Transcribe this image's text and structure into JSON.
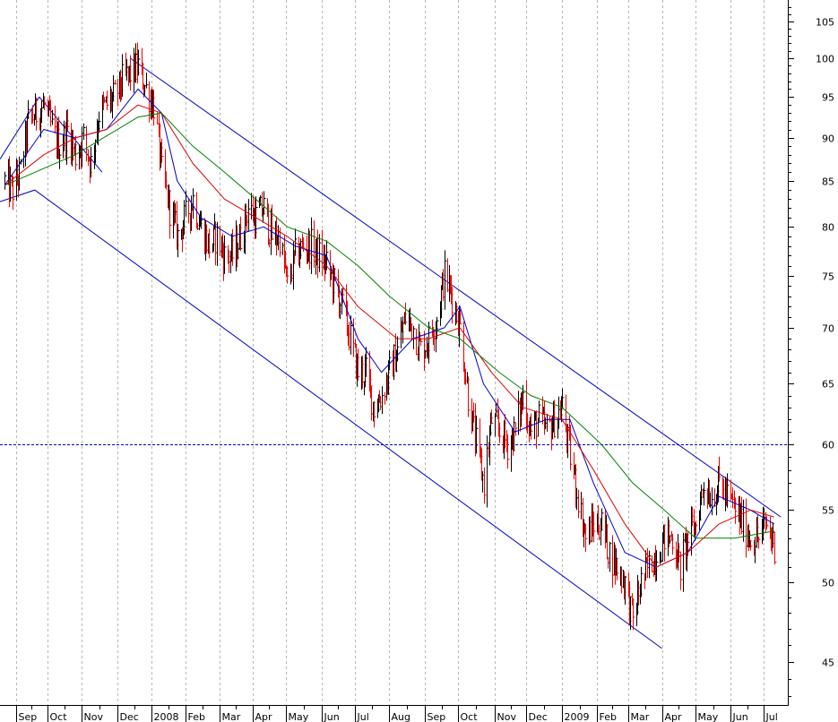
{
  "chart_data": {
    "type": "candlestick",
    "title": "",
    "xlabel": "",
    "ylabel": "",
    "y_scale": "log",
    "ylim": [
      42.5,
      108
    ],
    "y_ticks": [
      45,
      50,
      55,
      60,
      65,
      70,
      75,
      80,
      85,
      90,
      95,
      100,
      105
    ],
    "x_ticks": [
      {
        "label": "Sep",
        "date": "2007-09-03"
      },
      {
        "label": "Oct",
        "date": "2007-10-01"
      },
      {
        "label": "Nov",
        "date": "2007-11-01"
      },
      {
        "label": "Dec",
        "date": "2007-12-03"
      },
      {
        "label": "2008",
        "date": "2008-01-02"
      },
      {
        "label": "Feb",
        "date": "2008-02-01"
      },
      {
        "label": "Mar",
        "date": "2008-03-03"
      },
      {
        "label": "Apr",
        "date": "2008-04-01"
      },
      {
        "label": "May",
        "date": "2008-05-01"
      },
      {
        "label": "Jun",
        "date": "2008-06-02"
      },
      {
        "label": "Jul",
        "date": "2008-07-01"
      },
      {
        "label": "Aug",
        "date": "2008-08-01"
      },
      {
        "label": "Sep",
        "date": "2008-09-02"
      },
      {
        "label": "Oct",
        "date": "2008-10-01"
      },
      {
        "label": "Nov",
        "date": "2008-11-03"
      },
      {
        "label": "Dec",
        "date": "2008-12-01"
      },
      {
        "label": "2009",
        "date": "2009-01-02"
      },
      {
        "label": "Feb",
        "date": "2009-02-02"
      },
      {
        "label": "Mar",
        "date": "2009-03-02"
      },
      {
        "label": "Apr",
        "date": "2009-04-01"
      },
      {
        "label": "May",
        "date": "2009-05-01"
      },
      {
        "label": "Jun",
        "date": "2009-06-01"
      },
      {
        "label": "Jul",
        "date": "2009-07-01"
      }
    ],
    "grid": "vertical dotted",
    "close_series": [
      [
        "2007-08-24",
        85
      ],
      [
        "2007-08-31",
        84
      ],
      [
        "2007-09-07",
        86
      ],
      [
        "2007-09-14",
        92
      ],
      [
        "2007-09-21",
        93
      ],
      [
        "2007-09-28",
        94
      ],
      [
        "2007-10-05",
        91
      ],
      [
        "2007-10-12",
        89
      ],
      [
        "2007-10-19",
        91
      ],
      [
        "2007-10-26",
        88
      ],
      [
        "2007-11-02",
        90
      ],
      [
        "2007-11-09",
        87
      ],
      [
        "2007-11-16",
        93
      ],
      [
        "2007-11-23",
        94
      ],
      [
        "2007-11-30",
        95
      ],
      [
        "2007-12-07",
        97
      ],
      [
        "2007-12-14",
        98
      ],
      [
        "2007-12-21",
        99
      ],
      [
        "2007-12-28",
        96
      ],
      [
        "2008-01-04",
        94
      ],
      [
        "2008-01-11",
        86
      ],
      [
        "2008-01-18",
        82
      ],
      [
        "2008-01-25",
        79
      ],
      [
        "2008-02-01",
        81
      ],
      [
        "2008-02-08",
        83
      ],
      [
        "2008-02-15",
        80
      ],
      [
        "2008-02-22",
        78
      ],
      [
        "2008-02-29",
        79
      ],
      [
        "2008-03-07",
        77
      ],
      [
        "2008-03-14",
        77
      ],
      [
        "2008-03-21",
        79
      ],
      [
        "2008-03-28",
        82
      ],
      [
        "2008-04-04",
        81
      ],
      [
        "2008-04-11",
        82
      ],
      [
        "2008-04-18",
        79
      ],
      [
        "2008-04-25",
        79
      ],
      [
        "2008-05-02",
        74
      ],
      [
        "2008-05-09",
        77
      ],
      [
        "2008-05-16",
        78
      ],
      [
        "2008-05-23",
        78
      ],
      [
        "2008-05-30",
        77
      ],
      [
        "2008-06-06",
        76
      ],
      [
        "2008-06-13",
        74
      ],
      [
        "2008-06-20",
        72
      ],
      [
        "2008-06-27",
        69
      ],
      [
        "2008-07-04",
        66
      ],
      [
        "2008-07-11",
        66
      ],
      [
        "2008-07-18",
        63
      ],
      [
        "2008-07-25",
        64
      ],
      [
        "2008-08-01",
        66
      ],
      [
        "2008-08-08",
        68
      ],
      [
        "2008-08-15",
        71
      ],
      [
        "2008-08-22",
        70
      ],
      [
        "2008-08-29",
        68
      ],
      [
        "2008-09-05",
        69
      ],
      [
        "2008-09-12",
        71
      ],
      [
        "2008-09-19",
        75
      ],
      [
        "2008-09-26",
        73
      ],
      [
        "2008-10-03",
        70
      ],
      [
        "2008-10-10",
        64
      ],
      [
        "2008-10-17",
        60
      ],
      [
        "2008-10-24",
        57
      ],
      [
        "2008-10-31",
        62
      ],
      [
        "2008-11-07",
        61
      ],
      [
        "2008-11-14",
        60
      ],
      [
        "2008-11-21",
        61
      ],
      [
        "2008-11-28",
        64
      ],
      [
        "2008-12-05",
        61
      ],
      [
        "2008-12-12",
        62
      ],
      [
        "2008-12-19",
        61
      ],
      [
        "2008-12-26",
        62
      ],
      [
        "2009-01-02",
        63
      ],
      [
        "2009-01-09",
        59
      ],
      [
        "2009-01-16",
        56
      ],
      [
        "2009-01-23",
        53
      ],
      [
        "2009-01-30",
        54
      ],
      [
        "2009-02-06",
        54
      ],
      [
        "2009-02-13",
        52
      ],
      [
        "2009-02-20",
        51
      ],
      [
        "2009-02-27",
        50
      ],
      [
        "2009-03-06",
        47.5
      ],
      [
        "2009-03-13",
        50
      ],
      [
        "2009-03-20",
        51
      ],
      [
        "2009-03-27",
        52
      ],
      [
        "2009-04-03",
        53
      ],
      [
        "2009-04-10",
        53
      ],
      [
        "2009-04-17",
        51
      ],
      [
        "2009-04-24",
        53
      ],
      [
        "2009-05-01",
        54
      ],
      [
        "2009-05-08",
        57
      ],
      [
        "2009-05-15",
        56
      ],
      [
        "2009-05-22",
        57
      ],
      [
        "2009-05-29",
        56
      ],
      [
        "2009-06-05",
        55
      ],
      [
        "2009-06-12",
        54
      ],
      [
        "2009-06-19",
        53
      ],
      [
        "2009-06-26",
        53
      ],
      [
        "2009-07-03",
        54
      ],
      [
        "2009-07-10",
        52.5
      ]
    ],
    "moving_averages": [
      {
        "color": "#0000cc",
        "values": [
          [
            "2007-08-24",
            84.5
          ],
          [
            "2007-09-28",
            91
          ],
          [
            "2007-10-26",
            90
          ],
          [
            "2007-11-23",
            91
          ],
          [
            "2007-12-21",
            96
          ],
          [
            "2008-01-11",
            93
          ],
          [
            "2008-01-25",
            85
          ],
          [
            "2008-02-15",
            81
          ],
          [
            "2008-03-14",
            79
          ],
          [
            "2008-04-11",
            80
          ],
          [
            "2008-05-09",
            78
          ],
          [
            "2008-06-06",
            77
          ],
          [
            "2008-07-04",
            69
          ],
          [
            "2008-07-25",
            66
          ],
          [
            "2008-08-22",
            69
          ],
          [
            "2008-09-19",
            70
          ],
          [
            "2008-10-03",
            72
          ],
          [
            "2008-10-24",
            65
          ],
          [
            "2008-11-21",
            61
          ],
          [
            "2008-12-19",
            62
          ],
          [
            "2009-01-09",
            62
          ],
          [
            "2009-01-30",
            57
          ],
          [
            "2009-02-27",
            52
          ],
          [
            "2009-03-27",
            51
          ],
          [
            "2009-04-24",
            52
          ],
          [
            "2009-05-22",
            56
          ],
          [
            "2009-06-19",
            55
          ],
          [
            "2009-07-10",
            54
          ]
        ]
      },
      {
        "color": "#dd0000",
        "values": [
          [
            "2007-08-24",
            84.5
          ],
          [
            "2007-09-28",
            88
          ],
          [
            "2007-10-26",
            90
          ],
          [
            "2007-11-23",
            91
          ],
          [
            "2007-12-21",
            94
          ],
          [
            "2008-01-11",
            93
          ],
          [
            "2008-02-08",
            87
          ],
          [
            "2008-03-07",
            83
          ],
          [
            "2008-04-04",
            81
          ],
          [
            "2008-05-02",
            79
          ],
          [
            "2008-06-06",
            76
          ],
          [
            "2008-07-04",
            72
          ],
          [
            "2008-08-08",
            69
          ],
          [
            "2008-09-05",
            69
          ],
          [
            "2008-10-03",
            70
          ],
          [
            "2008-10-31",
            66
          ],
          [
            "2008-11-28",
            63
          ],
          [
            "2009-01-02",
            62
          ],
          [
            "2009-01-30",
            58
          ],
          [
            "2009-02-27",
            54
          ],
          [
            "2009-03-27",
            51
          ],
          [
            "2009-04-24",
            52
          ],
          [
            "2009-05-22",
            54
          ],
          [
            "2009-06-19",
            55
          ],
          [
            "2009-07-10",
            54.5
          ]
        ]
      },
      {
        "color": "#008000",
        "values": [
          [
            "2007-08-24",
            84.5
          ],
          [
            "2007-10-26",
            88
          ],
          [
            "2007-12-21",
            92.5
          ],
          [
            "2008-01-11",
            93
          ],
          [
            "2008-02-08",
            89
          ],
          [
            "2008-03-07",
            86
          ],
          [
            "2008-04-04",
            83
          ],
          [
            "2008-05-02",
            80
          ],
          [
            "2008-06-06",
            78.5
          ],
          [
            "2008-07-04",
            76
          ],
          [
            "2008-08-01",
            73
          ],
          [
            "2008-09-05",
            70
          ],
          [
            "2008-10-03",
            69
          ],
          [
            "2008-11-07",
            66
          ],
          [
            "2008-12-05",
            64
          ],
          [
            "2009-01-02",
            63
          ],
          [
            "2009-02-06",
            60
          ],
          [
            "2009-03-06",
            57
          ],
          [
            "2009-04-03",
            55
          ],
          [
            "2009-05-01",
            53
          ],
          [
            "2009-06-05",
            53
          ],
          [
            "2009-07-10",
            53.5
          ]
        ]
      }
    ],
    "trendlines": [
      {
        "color": "#0000cc",
        "from": [
          "2007-12-14",
          100
        ],
        "to": [
          "2009-07-16",
          54.5
        ]
      },
      {
        "color": "#0000cc",
        "from": [
          "2007-08-20",
          82.7
        ],
        "to": [
          "2007-09-20",
          84
        ],
        "then": [
          "2009-04-01",
          45.8
        ]
      },
      {
        "color": "#0000cc",
        "from": [
          "2007-09-24",
          95
        ],
        "to": [
          "2007-11-19",
          86
        ]
      },
      {
        "color": "#0000cc",
        "from": [
          "2007-08-20",
          87.5
        ],
        "to": [
          "2007-09-24",
          95
        ]
      }
    ],
    "horizontal_line": {
      "value": 60,
      "color": "#0000cc",
      "style": "dashed"
    },
    "up_color": "#000000",
    "down_color": "#ee0000"
  }
}
